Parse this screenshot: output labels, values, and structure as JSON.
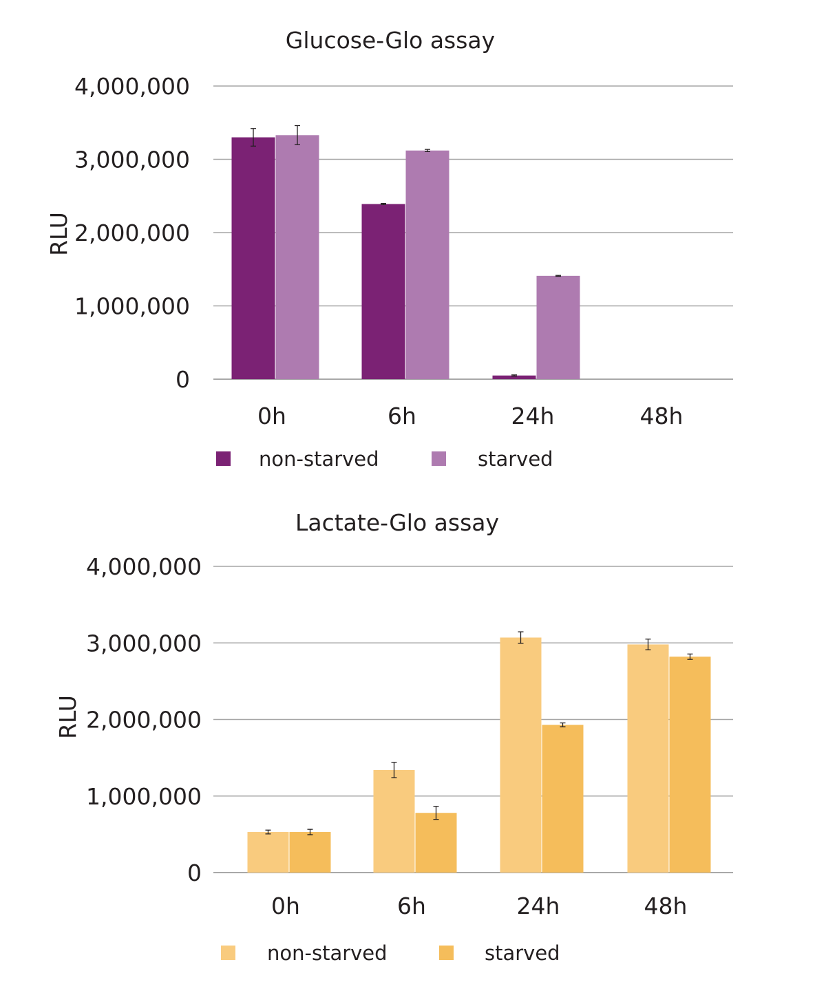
{
  "chart_data": [
    {
      "type": "bar",
      "title": "Glucose-Glo assay",
      "xlabel": "",
      "ylabel": "RLU",
      "ylim": [
        0,
        4000000
      ],
      "yticks": [
        "0",
        "1,000,000",
        "2,000,000",
        "3,000,000",
        "4,000,000"
      ],
      "ytick_values": [
        0,
        1000000,
        2000000,
        3000000,
        4000000
      ],
      "grid": true,
      "legend_position": "bottom",
      "categories": [
        "0h",
        "6h",
        "24h",
        "48h"
      ],
      "series": [
        {
          "name": "non-starved",
          "color": "#7b2274",
          "values": [
            3300000,
            2390000,
            50000,
            0
          ],
          "errors": [
            120000,
            8000,
            8000,
            0
          ]
        },
        {
          "name": "starved",
          "color": "#ae7bb0",
          "values": [
            3330000,
            3120000,
            1410000,
            0
          ],
          "errors": [
            130000,
            15000,
            6000,
            0
          ]
        }
      ]
    },
    {
      "type": "bar",
      "title": "Lactate-Glo assay",
      "xlabel": "",
      "ylabel": "RLU",
      "ylim": [
        0,
        4000000
      ],
      "yticks": [
        "0",
        "1,000,000",
        "2,000,000",
        "3,000,000",
        "4,000,000"
      ],
      "ytick_values": [
        0,
        1000000,
        2000000,
        3000000,
        4000000
      ],
      "grid": true,
      "legend_position": "bottom",
      "categories": [
        "0h",
        "6h",
        "24h",
        "48h"
      ],
      "series": [
        {
          "name": "non-starved",
          "color": "#f9cb7e",
          "values": [
            530000,
            1340000,
            3070000,
            2980000
          ],
          "errors": [
            25000,
            100000,
            75000,
            70000
          ]
        },
        {
          "name": "starved",
          "color": "#f5bd5b",
          "values": [
            530000,
            780000,
            1930000,
            2820000
          ],
          "errors": [
            35000,
            85000,
            25000,
            35000
          ]
        }
      ]
    }
  ]
}
